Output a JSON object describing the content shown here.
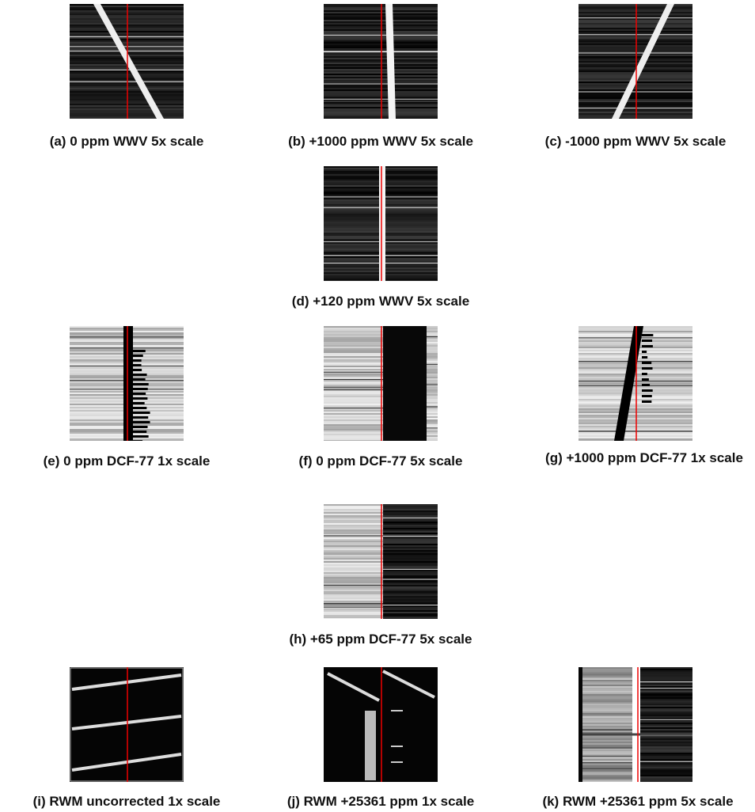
{
  "panels": [
    {
      "caption": "(a) 0 ppm WWV 5x scale"
    },
    {
      "caption": "(b) +1000 ppm WWV 5x scale"
    },
    {
      "caption": "(c) -1000 ppm WWV 5x scale"
    },
    {
      "caption": "(d) +120 ppm WWV 5x scale"
    },
    {
      "caption": "(e) 0 ppm DCF-77 1x scale"
    },
    {
      "caption": "(f) 0 ppm DCF-77 5x scale"
    },
    {
      "caption": "(g) +1000 ppm DCF-77 1x scale"
    },
    {
      "caption": "(h) +65 ppm DCF-77 5x scale"
    },
    {
      "caption": "(i) RWM uncorrected 1x scale"
    },
    {
      "caption": "(j) RWM +25361 ppm 1x scale"
    },
    {
      "caption": "(k) RWM +25361 ppm 5x scale"
    }
  ]
}
